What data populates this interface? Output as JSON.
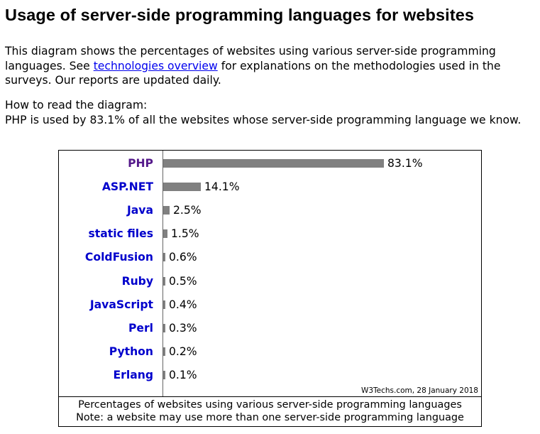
{
  "page": {
    "title": "Usage of server-side programming languages for websites",
    "intro_before_link": "This diagram shows the percentages of websites using various server-side programming languages. See ",
    "intro_link": "technologies overview",
    "intro_after_link": " for explanations on the methodologies used in the surveys. Our reports are updated daily.",
    "howto_heading": "How to read the diagram:",
    "howto_text": "PHP is used by 83.1% of all the websites whose server-side programming language we know."
  },
  "chart_data": {
    "type": "bar",
    "orientation": "horizontal",
    "categories": [
      "PHP",
      "ASP.NET",
      "Java",
      "static files",
      "ColdFusion",
      "Ruby",
      "JavaScript",
      "Perl",
      "Python",
      "Erlang"
    ],
    "values": [
      83.1,
      14.1,
      2.5,
      1.5,
      0.6,
      0.5,
      0.4,
      0.3,
      0.2,
      0.1
    ],
    "value_labels": [
      "83.1%",
      "14.1%",
      "2.5%",
      "1.5%",
      "0.6%",
      "0.5%",
      "0.4%",
      "0.3%",
      "0.2%",
      "0.1%"
    ],
    "unit": "%",
    "bar_color": "#808080",
    "label_color": "#0000cc",
    "visited_label_color": "#551a8b",
    "visited_category": "PHP",
    "xlim": [
      0,
      100
    ],
    "grid": false,
    "credit": "W3Techs.com, 28 January 2018",
    "caption_line1": "Percentages of websites using various server-side programming languages",
    "caption_line2": "Note: a website may use more than one server-side programming language"
  }
}
